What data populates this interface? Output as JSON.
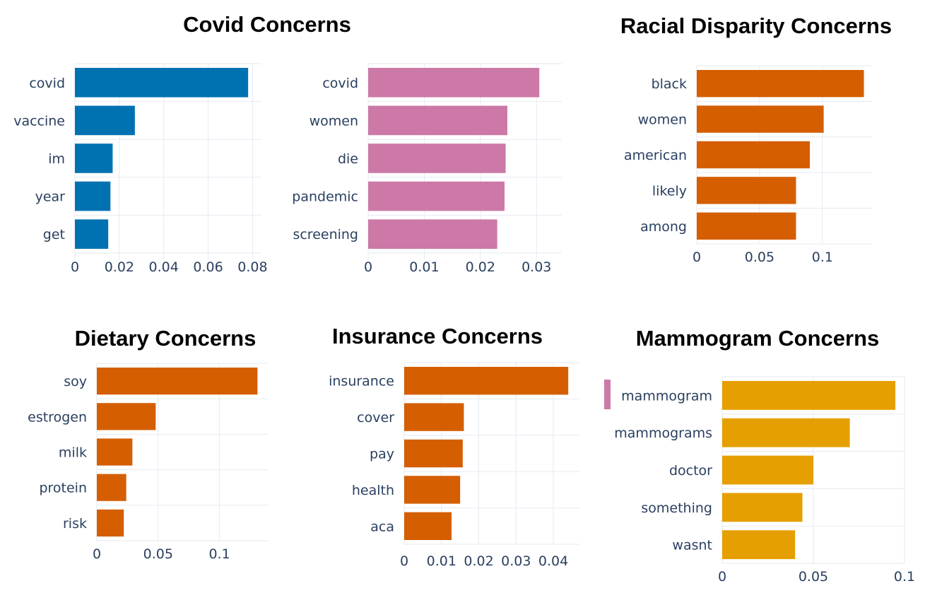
{
  "titles": {
    "covid": "Covid Concerns",
    "racial": "Racial Disparity Concerns",
    "dietary": "Dietary Concerns",
    "insurance": "Insurance Concerns",
    "mammogram": "Mammogram Concerns"
  },
  "chart_data": [
    {
      "type": "bar",
      "orientation": "horizontal",
      "title": "Covid Concerns",
      "categories": [
        "covid",
        "vaccine",
        "im",
        "year",
        "get"
      ],
      "values": [
        0.078,
        0.027,
        0.017,
        0.016,
        0.015
      ],
      "xlim": [
        0,
        0.084
      ],
      "xticks": [
        0,
        0.02,
        0.04,
        0.06,
        0.08
      ],
      "xtick_labels": [
        "0",
        "0.02",
        "0.04",
        "0.06",
        "0.08"
      ],
      "color": "#0072b2",
      "grid": true
    },
    {
      "type": "bar",
      "orientation": "horizontal",
      "title": "Covid Concerns",
      "categories": [
        "covid",
        "women",
        "die",
        "pandemic",
        "screening"
      ],
      "values": [
        0.0305,
        0.0248,
        0.0245,
        0.0243,
        0.023
      ],
      "xlim": [
        0,
        0.0345
      ],
      "xticks": [
        0,
        0.01,
        0.02,
        0.03
      ],
      "xtick_labels": [
        "0",
        "0.01",
        "0.02",
        "0.03"
      ],
      "color": "#cc79a7",
      "grid": true
    },
    {
      "type": "bar",
      "orientation": "horizontal",
      "title": "Racial Disparity Concerns",
      "categories": [
        "black",
        "women",
        "american",
        "likely",
        "among"
      ],
      "values": [
        0.133,
        0.101,
        0.09,
        0.079,
        0.079
      ],
      "xlim": [
        0,
        0.14
      ],
      "xticks": [
        0,
        0.05,
        0.1
      ],
      "xtick_labels": [
        "0",
        "0.05",
        "0.1"
      ],
      "color": "#d55e00",
      "grid": true
    },
    {
      "type": "bar",
      "orientation": "horizontal",
      "title": "Dietary Concerns",
      "categories": [
        "soy",
        "estrogen",
        "milk",
        "protein",
        "risk"
      ],
      "values": [
        0.131,
        0.048,
        0.029,
        0.024,
        0.022
      ],
      "xlim": [
        0,
        0.14
      ],
      "xticks": [
        0,
        0.05,
        0.1
      ],
      "xtick_labels": [
        "0",
        "0.05",
        "0.1"
      ],
      "color": "#d55e00",
      "grid": true
    },
    {
      "type": "bar",
      "orientation": "horizontal",
      "title": "Insurance Concerns",
      "categories": [
        "insurance",
        "cover",
        "pay",
        "health",
        "aca"
      ],
      "values": [
        0.044,
        0.016,
        0.0157,
        0.015,
        0.0127
      ],
      "xlim": [
        0,
        0.047
      ],
      "xticks": [
        0,
        0.01,
        0.02,
        0.03,
        0.04
      ],
      "xtick_labels": [
        "0",
        "0.01",
        "0.02",
        "0.03",
        "0.04"
      ],
      "color": "#d55e00",
      "grid": true
    },
    {
      "type": "bar",
      "orientation": "horizontal",
      "title": "Mammogram Concerns",
      "categories": [
        "mammogram",
        "mammograms",
        "doctor",
        "something",
        "wasnt"
      ],
      "values": [
        0.095,
        0.07,
        0.05,
        0.044,
        0.04
      ],
      "xlim": [
        0,
        0.1
      ],
      "xticks": [
        0,
        0.05,
        0.1
      ],
      "xtick_labels": [
        "0",
        "0.05",
        "0.1"
      ],
      "color": "#e69f00",
      "grid": true
    }
  ]
}
